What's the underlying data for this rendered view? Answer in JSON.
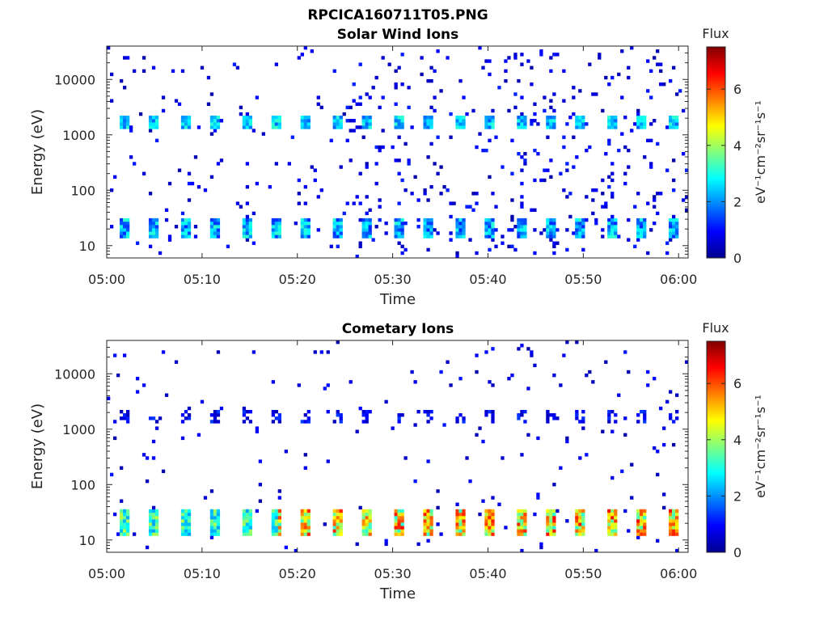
{
  "figure": {
    "filename": "RPCICA160711T05.PNG"
  },
  "chart_data": [
    {
      "type": "heatmap",
      "title": "Solar Wind Ions",
      "xlabel": "Time",
      "ylabel": "Energy (eV)",
      "x_ticks": [
        "05:00",
        "05:10",
        "05:20",
        "05:30",
        "05:40",
        "05:50",
        "06:00"
      ],
      "xlim": [
        "05:00",
        "06:01"
      ],
      "y_scale": "log",
      "y_ticks": [
        "10",
        "100",
        "1000",
        "10000"
      ],
      "ylim": [
        6,
        40000
      ],
      "colorbar": {
        "title": "Flux",
        "label": "eV⁻¹cm⁻²sr⁻¹s⁻¹",
        "ticks": [
          "0",
          "2",
          "4",
          "6"
        ],
        "range": [
          0,
          7.5
        ],
        "colormap": "jet"
      },
      "features": [
        {
          "description": "periodic bursts about every 3.2 minutes near 1500-2000 eV",
          "level": 2.5
        },
        {
          "description": "periodic bursts near 15-30 eV",
          "level": 2.2
        },
        {
          "description": "sparse scattered background counts across all energies",
          "level": 0.5
        }
      ]
    },
    {
      "type": "heatmap",
      "title": "Cometary Ions",
      "xlabel": "Time",
      "ylabel": "Energy (eV)",
      "x_ticks": [
        "05:00",
        "05:10",
        "05:20",
        "05:30",
        "05:40",
        "05:50",
        "06:00"
      ],
      "xlim": [
        "05:00",
        "06:01"
      ],
      "y_scale": "log",
      "y_ticks": [
        "10",
        "100",
        "1000",
        "10000"
      ],
      "ylim": [
        6,
        40000
      ],
      "colorbar": {
        "title": "Flux",
        "label": "eV⁻¹cm⁻²sr⁻¹s⁻¹",
        "ticks": [
          "0",
          "2",
          "4",
          "6"
        ],
        "range": [
          0,
          7.5
        ],
        "colormap": "jet"
      },
      "features": [
        {
          "description": "periodic intense bursts near 15-30 eV, strengthening after 05:20",
          "level": 5.5
        },
        {
          "description": "periodic weak bursts near 1500-2000 eV",
          "level": 0.8
        },
        {
          "description": "sparse scattered background counts",
          "level": 0.4
        }
      ]
    }
  ]
}
